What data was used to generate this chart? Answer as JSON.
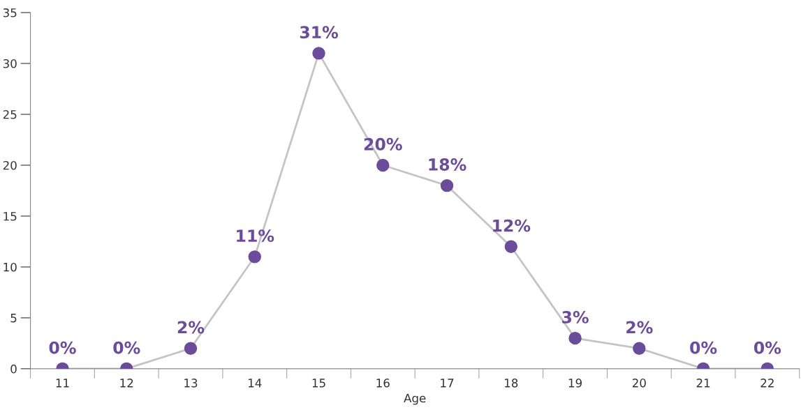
{
  "chart_data": {
    "type": "line",
    "xlabel": "Age",
    "categories": [
      "11",
      "12",
      "13",
      "14",
      "15",
      "16",
      "17",
      "18",
      "19",
      "20",
      "21",
      "22"
    ],
    "series": [
      {
        "color": "#c4c4c4",
        "colors": [
          "#6b4c9a",
          "#6b4c9a",
          "#6b4c9a",
          "#6b4c9a",
          "#6b4c9a",
          "#6b4c9a",
          "#6b4c9a",
          "#6b4c9a",
          "#6b4c9a",
          "#6b4c9a",
          "#6b4c9a",
          "#6b4c9a"
        ],
        "values": [
          0,
          0,
          2,
          11,
          31,
          20,
          18,
          12,
          3,
          2,
          0,
          0
        ],
        "value_labels": [
          "0%",
          "0%",
          "2%",
          "11%",
          "31%",
          "20%",
          "18%",
          "12%",
          "3%",
          "2%",
          "0%",
          "0%"
        ]
      }
    ],
    "ylim": [
      0,
      35
    ],
    "yticks": [
      0,
      5,
      10,
      15,
      20,
      25,
      30,
      35
    ],
    "marker": "circle",
    "line_style": "solid",
    "grid": false,
    "legend": false
  }
}
